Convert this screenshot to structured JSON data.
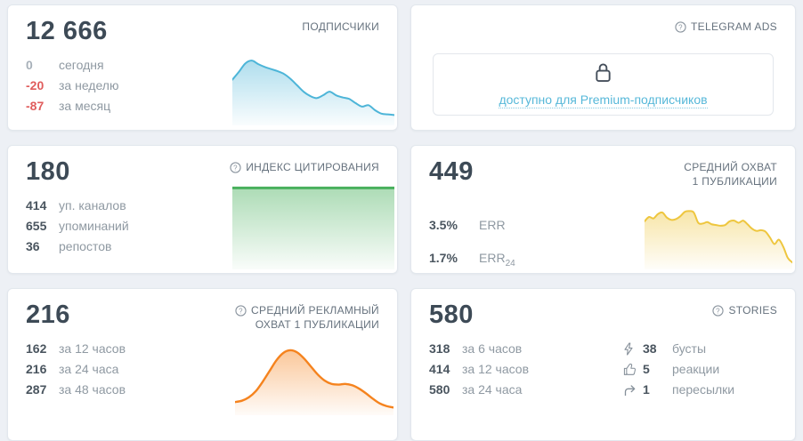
{
  "page": {
    "background": "#edf0f5"
  },
  "colors": {
    "card_bg": "#ffffff",
    "card_border": "#e2e7ed",
    "big_number": "#3d4a56",
    "title": "#66727e",
    "stat_value": "#4a555f",
    "stat_label": "#8f99a2",
    "negative": "#e05c5c",
    "muted": "#a7b0b9",
    "link_blue": "#57b8d9",
    "spark_blue": "#4db5d8",
    "spark_green": "#48b05c",
    "spark_yellow": "#eec63e",
    "spark_orange": "#f5831e"
  },
  "cards": {
    "subscribers": {
      "title": "ПОДПИСЧИКИ",
      "value": "12 666",
      "stats": [
        {
          "value": "0",
          "label": "сегодня",
          "tone": "muted"
        },
        {
          "value": "-20",
          "label": "за неделю",
          "tone": "negative"
        },
        {
          "value": "-87",
          "label": "за месяц",
          "tone": "negative"
        }
      ]
    },
    "telegram_ads": {
      "title": "TELEGRAM ADS",
      "locked_text": "доступно для Premium-подписчиков"
    },
    "citation_index": {
      "title": "ИНДЕКС ЦИТИРОВАНИЯ",
      "value": "180",
      "stats": [
        {
          "value": "414",
          "label": "уп. каналов"
        },
        {
          "value": "655",
          "label": "упоминаний"
        },
        {
          "value": "36",
          "label": "репостов"
        }
      ]
    },
    "avg_reach": {
      "title_line1": "СРЕДНИЙ ОХВАТ",
      "title_line2": "1 ПУБЛИКАЦИИ",
      "value": "449",
      "stats": [
        {
          "value": "3.5%",
          "label": "ERR",
          "sub": ""
        },
        {
          "value": "1.7%",
          "label": "ERR",
          "sub": "24"
        }
      ]
    },
    "avg_ad_reach": {
      "title_line1": "СРЕДНИЙ РЕКЛАМНЫЙ",
      "title_line2": "ОХВАТ 1 ПУБЛИКАЦИИ",
      "value": "216",
      "stats": [
        {
          "value": "162",
          "label": "за 12 часов"
        },
        {
          "value": "216",
          "label": "за 24 часа"
        },
        {
          "value": "287",
          "label": "за 48 часов"
        }
      ]
    },
    "stories": {
      "title": "STORIES",
      "value": "580",
      "stats_time": [
        {
          "value": "318",
          "label": "за 6 часов"
        },
        {
          "value": "414",
          "label": "за 12 часов"
        },
        {
          "value": "580",
          "label": "за 24 часа"
        }
      ],
      "stats_engagement": [
        {
          "icon": "boost-icon",
          "value": "38",
          "label": "бусты"
        },
        {
          "icon": "reaction-icon",
          "value": "5",
          "label": "реакции"
        },
        {
          "icon": "forward-icon",
          "value": "1",
          "label": "пересылки"
        }
      ]
    }
  },
  "chart_data": [
    {
      "id": "subscribers-trend",
      "card": "ПОДПИСЧИКИ",
      "type": "area",
      "axes": "hidden-sparkline",
      "line_color": "#4db5d8",
      "stroke_width": 2,
      "values": [
        63,
        74,
        86,
        90,
        85,
        81,
        78,
        75,
        71,
        64,
        55,
        46,
        40,
        37,
        41,
        46,
        41,
        38,
        36,
        30,
        25,
        27,
        20,
        15,
        14,
        13
      ]
    },
    {
      "id": "citation-trend",
      "card": "ИНДЕКС ЦИТИРОВАНИЯ",
      "type": "area",
      "axes": "hidden-sparkline",
      "line_color": "#48b05c",
      "stroke_width": 3,
      "values": [
        99,
        99,
        99,
        99
      ]
    },
    {
      "id": "reach-trend",
      "card": "СРЕДНИЙ ОХВАТ 1 ПУБЛИКАЦИИ",
      "type": "area",
      "axes": "hidden-sparkline",
      "line_color": "#eec63e",
      "stroke_width": 2,
      "values": [
        64,
        70,
        68,
        74,
        76,
        69,
        66,
        67,
        71,
        77,
        78,
        76,
        62,
        61,
        63,
        60,
        59,
        58,
        59,
        64,
        65,
        62,
        65,
        60,
        54,
        51,
        52,
        50,
        42,
        33,
        39,
        29,
        14,
        8
      ]
    },
    {
      "id": "ad-reach-trend",
      "card": "СРЕДНИЙ РЕКЛАМНЫЙ ОХВАТ 1 ПУБЛИКАЦИИ",
      "type": "area",
      "axes": "hidden-sparkline",
      "line_color": "#f5831e",
      "stroke_width": 2.4,
      "values": [
        18,
        20,
        25,
        34,
        48,
        64,
        80,
        91,
        95,
        92,
        83,
        71,
        59,
        50,
        45,
        44,
        45,
        43,
        38,
        31,
        23,
        16,
        12,
        10
      ]
    }
  ]
}
